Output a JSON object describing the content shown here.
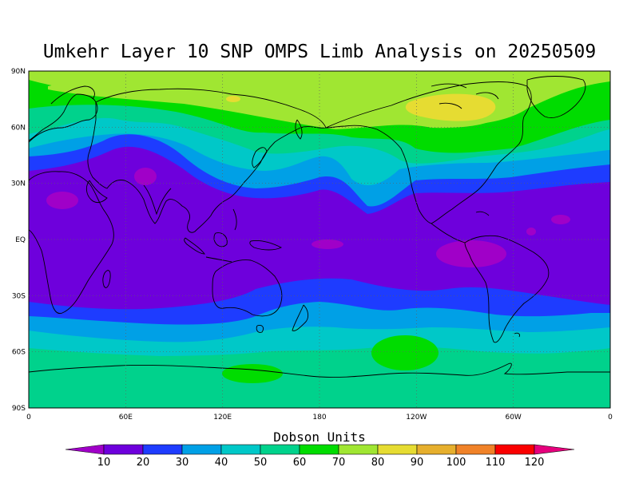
{
  "title": "Umkehr Layer 10 SNP OMPS Limb Analysis on 20250509",
  "map": {
    "lat_labels": [
      "90N",
      "60N",
      "30N",
      "EQ",
      "30S",
      "60S",
      "90S"
    ],
    "lon_labels": [
      "0",
      "60E",
      "120E",
      "180",
      "120W",
      "60W",
      "0"
    ],
    "grid_lines": "dotted",
    "projection": "equirectangular"
  },
  "colorbar": {
    "title": "Dobson Units",
    "levels": [
      10,
      20,
      30,
      40,
      50,
      60,
      70,
      80,
      90,
      100,
      110,
      120
    ],
    "colors": [
      "#a000c8",
      "#6e00dc",
      "#1e3cff",
      "#00a0e6",
      "#00c8c8",
      "#00d28c",
      "#00dc00",
      "#a0e632",
      "#e6dc32",
      "#e6af2d",
      "#f08228",
      "#fa0000",
      "#e6007d"
    ]
  },
  "field_colors": {
    "below_10": "#a000c8",
    "10_20": "#6e00dc",
    "20_30": "#1e3cff",
    "30_40": "#00a0e6",
    "40_50": "#00c8c8",
    "50_60": "#00d28c",
    "60_70": "#00dc00",
    "70_80": "#a0e632",
    "80_90": "#e6dc32"
  }
}
